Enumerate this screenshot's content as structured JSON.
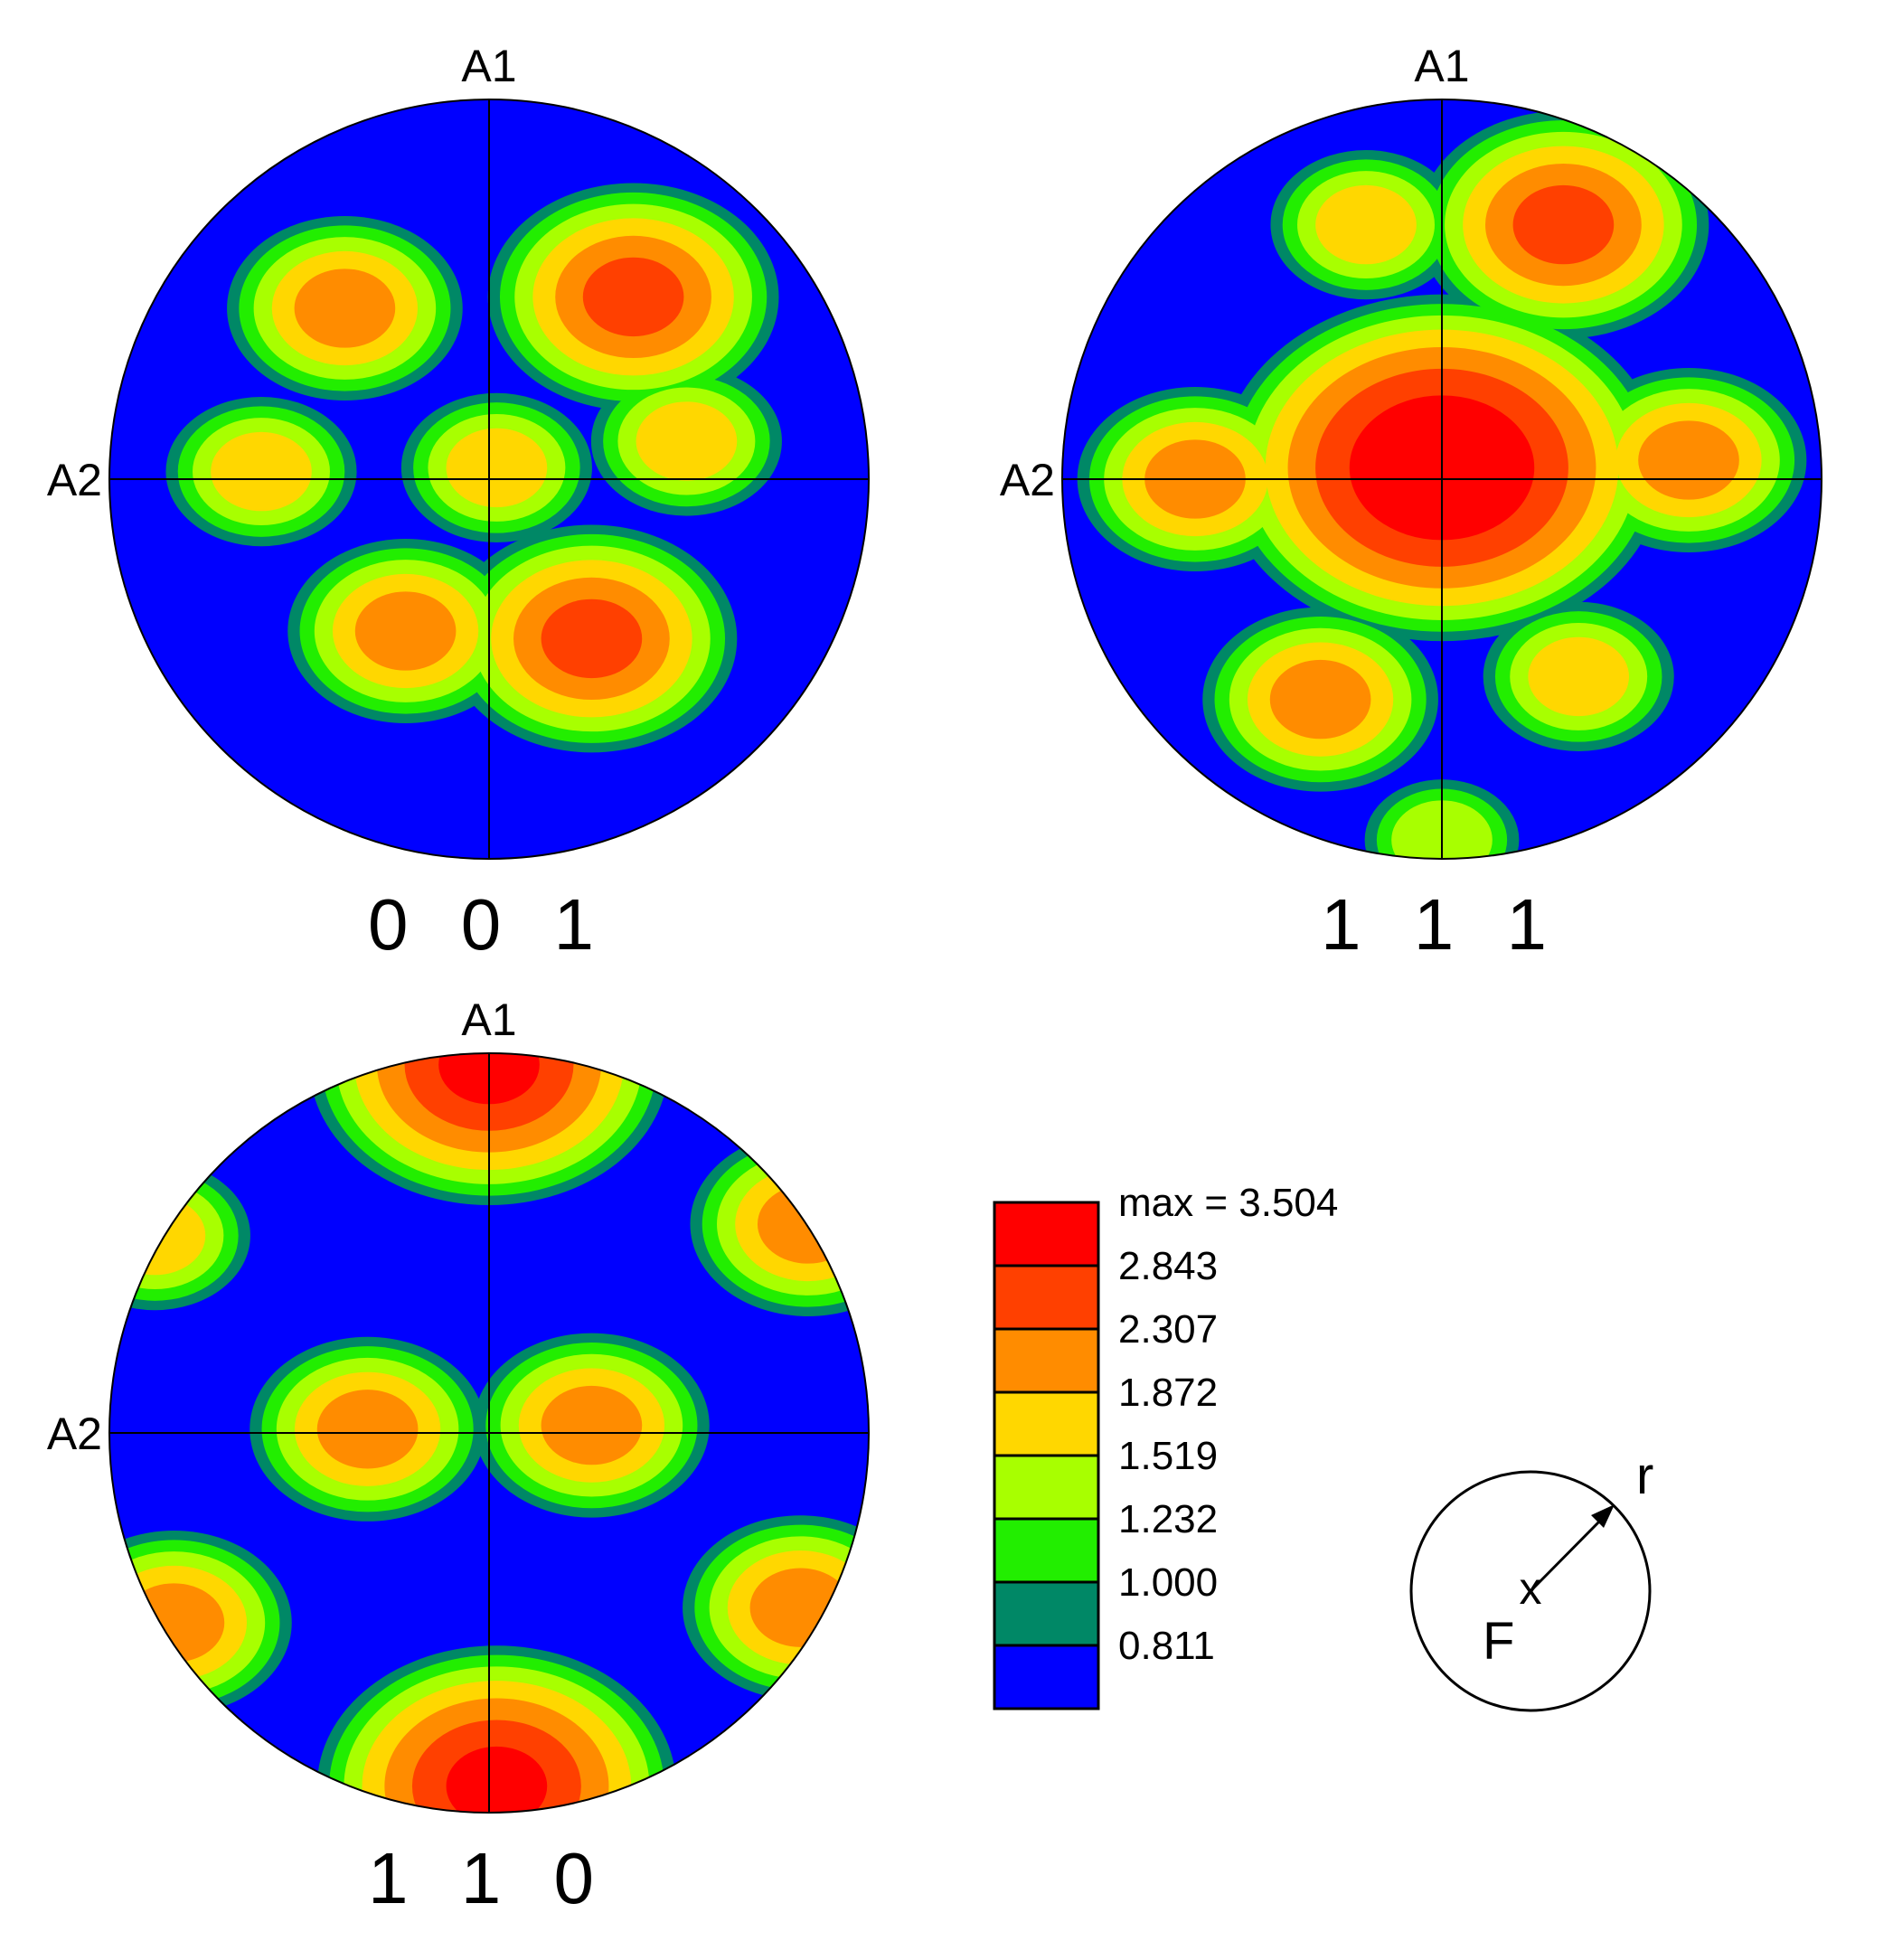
{
  "chart_data": [
    {
      "type": "heatmap",
      "subtype": "pole-figure",
      "title": "0 0 1",
      "axis_top": "A1",
      "axis_left": "A2",
      "peaks": [
        {
          "u": -0.38,
          "v": 0.45,
          "level": 1.872
        },
        {
          "u": 0.38,
          "v": 0.48,
          "level": 2.307
        },
        {
          "u": -0.6,
          "v": 0.02,
          "level": 1.519
        },
        {
          "u": 0.52,
          "v": 0.1,
          "level": 1.519
        },
        {
          "u": 0.02,
          "v": 0.03,
          "level": 1.519
        },
        {
          "u": -0.22,
          "v": -0.4,
          "level": 1.872
        },
        {
          "u": 0.27,
          "v": -0.42,
          "level": 2.307
        }
      ]
    },
    {
      "type": "heatmap",
      "subtype": "pole-figure",
      "title": "1 1 1",
      "axis_top": "A1",
      "axis_left": "A2",
      "peaks": [
        {
          "u": 0.0,
          "v": 0.03,
          "level": 3.504
        },
        {
          "u": 0.32,
          "v": 0.67,
          "level": 2.307
        },
        {
          "u": -0.65,
          "v": 0.0,
          "level": 1.872
        },
        {
          "u": 0.65,
          "v": 0.05,
          "level": 1.872
        },
        {
          "u": -0.32,
          "v": -0.58,
          "level": 1.872
        },
        {
          "u": 0.36,
          "v": -0.52,
          "level": 1.519
        },
        {
          "u": -0.2,
          "v": 0.67,
          "level": 1.519
        },
        {
          "u": 0.0,
          "v": -0.95,
          "level": 1.232
        }
      ]
    },
    {
      "type": "heatmap",
      "subtype": "pole-figure",
      "title": "1 1 0",
      "axis_top": "A1",
      "axis_left": "A2",
      "peaks": [
        {
          "u": 0.0,
          "v": 0.97,
          "level": 2.843
        },
        {
          "u": 0.02,
          "v": -0.93,
          "level": 2.843
        },
        {
          "u": -0.32,
          "v": 0.01,
          "level": 1.872
        },
        {
          "u": 0.27,
          "v": 0.02,
          "level": 1.872
        },
        {
          "u": -0.83,
          "v": -0.5,
          "level": 1.872
        },
        {
          "u": 0.82,
          "v": -0.46,
          "level": 1.872
        },
        {
          "u": 0.84,
          "v": 0.55,
          "level": 1.872
        },
        {
          "u": -0.88,
          "v": 0.52,
          "level": 1.519
        }
      ]
    }
  ],
  "legend": {
    "max_label": "max = 3.504",
    "levels": [
      "2.843",
      "2.307",
      "1.872",
      "1.519",
      "1.232",
      "1.000",
      "0.811"
    ],
    "colors": [
      "#ff0000",
      "#ff4000",
      "#ff8c00",
      "#ffd700",
      "#a8ff00",
      "#22ee00",
      "#008866",
      "#0000ff"
    ]
  },
  "reference": {
    "label_r": "r",
    "label_F": "F",
    "center_mark": "x"
  }
}
